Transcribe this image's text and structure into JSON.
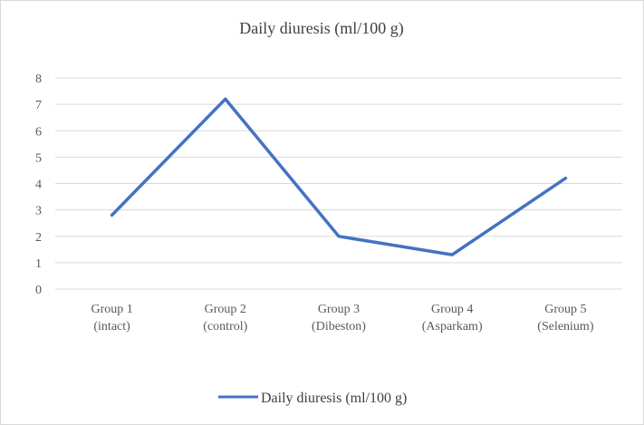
{
  "chart_data": {
    "type": "line",
    "title": "Daily diuresis (ml/100 g)",
    "xlabel": "",
    "ylabel": "",
    "categories": [
      [
        "Group 1",
        "(intact)"
      ],
      [
        "Group 2",
        "(control)"
      ],
      [
        "Group 3",
        "(Dibeston)"
      ],
      [
        "Group 4",
        "(Asparkam)"
      ],
      [
        "Group 5",
        "(Selenium)"
      ]
    ],
    "series": [
      {
        "name": "Daily diuresis (ml/100 g)",
        "values": [
          2.8,
          7.2,
          2.0,
          1.3,
          4.2
        ]
      }
    ],
    "ylim": [
      0,
      8
    ],
    "yticks": [
      "0",
      "1",
      "2",
      "3",
      "4",
      "5",
      "6",
      "7",
      "8"
    ],
    "grid": true,
    "legend": "bottom",
    "colors": {
      "line": "#4472c4",
      "grid": "#d9d9d9"
    }
  }
}
